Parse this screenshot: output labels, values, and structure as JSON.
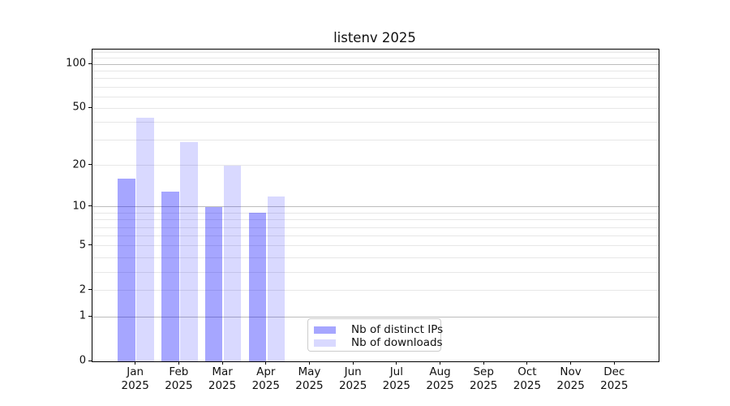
{
  "title": "listenv 2025",
  "chart_data": {
    "type": "bar",
    "title": "listenv 2025",
    "categories": [
      "Jan 2025",
      "Feb 2025",
      "Mar 2025",
      "Apr 2025",
      "May 2025",
      "Jun 2025",
      "Jul 2025",
      "Aug 2025",
      "Sep 2025",
      "Oct 2025",
      "Nov 2025",
      "Dec 2025"
    ],
    "months": [
      "Jan",
      "Feb",
      "Mar",
      "Apr",
      "May",
      "Jun",
      "Jul",
      "Aug",
      "Sep",
      "Oct",
      "Nov",
      "Dec"
    ],
    "year": "2025",
    "series": [
      {
        "name": "Nb of distinct IPs",
        "color": "rgba(0,0,255,0.35)",
        "values": [
          16,
          13,
          10,
          9,
          0,
          0,
          0,
          0,
          0,
          0,
          0,
          0
        ]
      },
      {
        "name": "Nb of downloads",
        "color": "rgba(0,0,255,0.15)",
        "values": [
          43,
          29,
          20,
          12,
          0,
          0,
          0,
          0,
          0,
          0,
          0,
          0
        ]
      }
    ],
    "xlabel": "",
    "ylabel": "",
    "yscale": "log1p",
    "ylim": [
      0,
      126
    ],
    "yticks": [
      0,
      1,
      2,
      5,
      10,
      20,
      50,
      100
    ],
    "ytick_labels": [
      "0",
      "1",
      "2",
      "5",
      "10",
      "20",
      "50",
      "100"
    ],
    "major_grid_values": [
      1,
      10,
      100
    ],
    "minor_grid_values": [
      2,
      3,
      4,
      5,
      6,
      7,
      8,
      9,
      20,
      30,
      40,
      50,
      60,
      70,
      80,
      90,
      110,
      120
    ],
    "grid": "both",
    "legend_position": "lower-center",
    "colors": {
      "major_grid": "#bcbcbc",
      "minor_grid": "#e7e7e7",
      "axis": "#000000",
      "background": "#ffffff"
    }
  }
}
